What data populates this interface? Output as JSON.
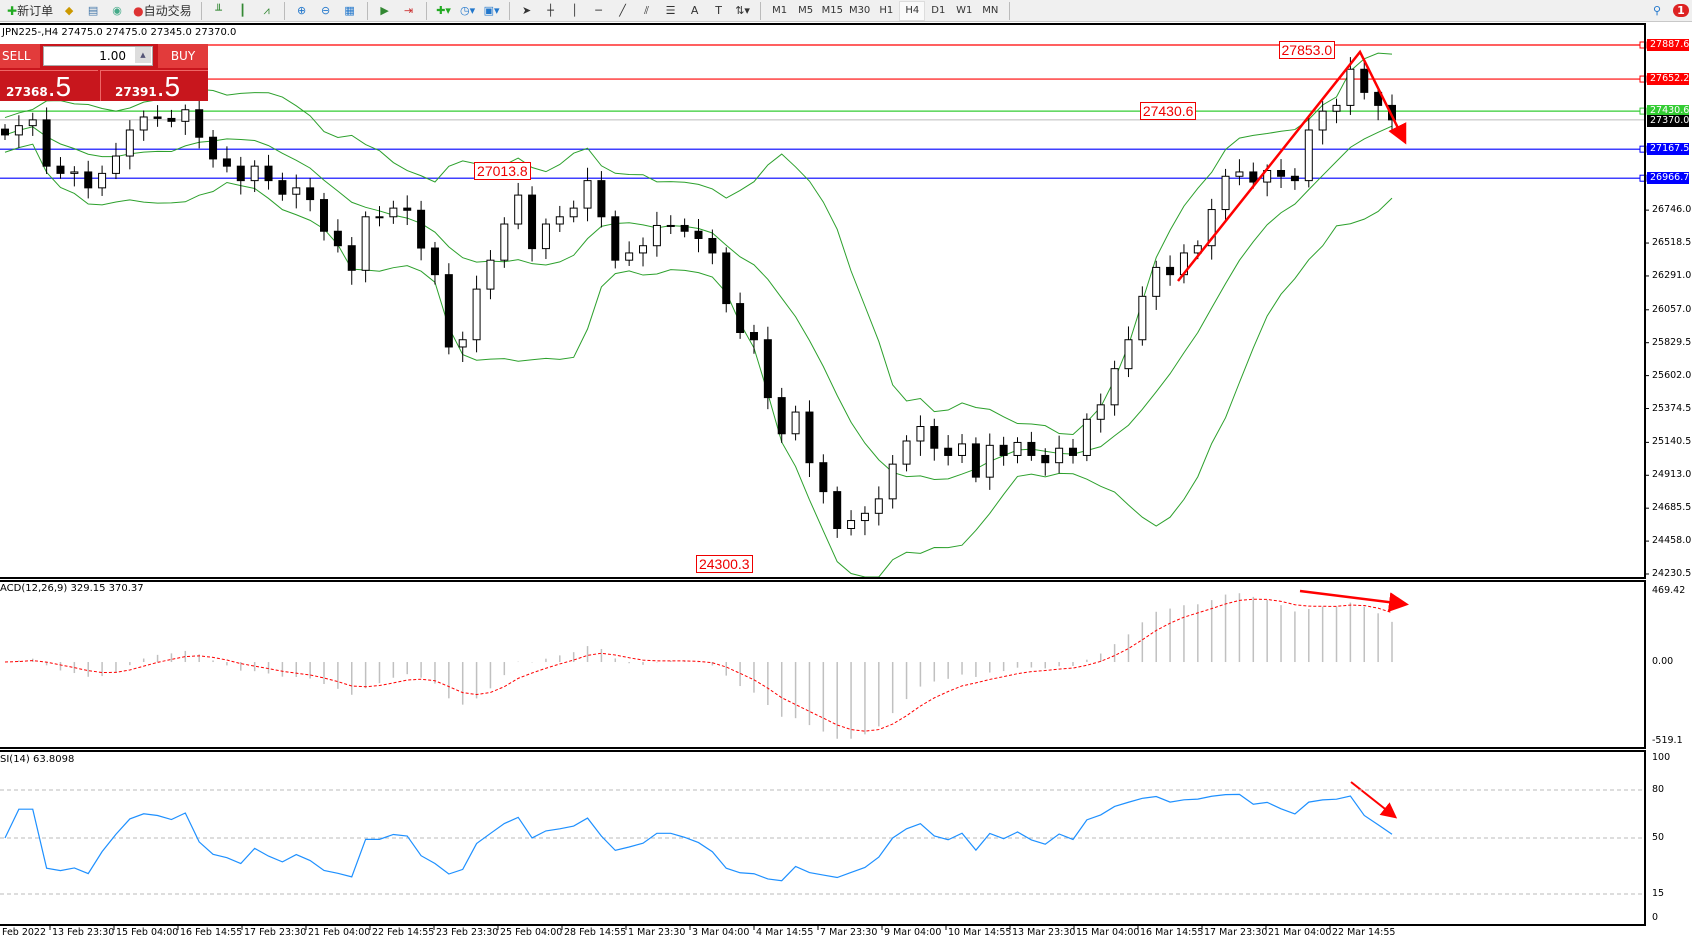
{
  "toolbar": {
    "new_order": "新订单",
    "auto_trading": "自动交易",
    "timeframes": [
      "M1",
      "M5",
      "M15",
      "M30",
      "H1",
      "H4",
      "D1",
      "W1",
      "MN"
    ],
    "active_timeframe": "H4",
    "notification_count": "1"
  },
  "chart": {
    "symbol_info": "JPN225-,H4  27475.0 27475.0 27345.0 27370.0",
    "trade_panel": {
      "sell": "SELL",
      "buy": "BUY",
      "lot": "1.00",
      "sell_price_main": "27368",
      "sell_price_big": ".5",
      "buy_price_main": "27391",
      "buy_price_big": ".5"
    },
    "price_ticks": [
      "26746.0",
      "26518.5",
      "26291.0",
      "26057.0",
      "25829.5",
      "25602.0",
      "25374.5",
      "25140.5",
      "24913.0",
      "24685.5",
      "24458.0",
      "24230.5"
    ],
    "levels": [
      {
        "value": "27887.6",
        "color": "#ff0000"
      },
      {
        "value": "27652.2",
        "color": "#ff0000"
      },
      {
        "value": "27430.6",
        "color": "#33cc33"
      },
      {
        "value": "27167.5",
        "color": "#0000ff"
      },
      {
        "value": "26966.7",
        "color": "#0000ff"
      }
    ],
    "current_price": "27370.0",
    "price_labels": [
      {
        "text": "27853.0",
        "value": 27853.0,
        "bar": 96
      },
      {
        "text": "27430.6",
        "value": 27430.6,
        "bar": 86
      },
      {
        "text": "27013.8",
        "value": 27013.8,
        "bar": 38
      },
      {
        "text": "24300.3",
        "value": 24300.3,
        "bar": 54
      }
    ],
    "time_labels": [
      "Feb 2022",
      "13 Feb 23:30",
      "15 Feb 04:00",
      "16 Feb 14:55",
      "17 Feb 23:30",
      "21 Feb 04:00",
      "22 Feb 14:55",
      "23 Feb 23:30",
      "25 Feb 04:00",
      "28 Feb 14:55",
      "1 Mar 23:30",
      "3 Mar 04:00",
      "4 Mar 14:55",
      "7 Mar 23:30",
      "9 Mar 04:00",
      "10 Mar 14:55",
      "13 Mar 23:30",
      "15 Mar 04:00",
      "16 Mar 14:55",
      "17 Mar 23:30",
      "21 Mar 04:00",
      "22 Mar 14:55"
    ],
    "colors": {
      "bollinger": "#2ca02c",
      "arrow": "#ff0000",
      "macd_signal": "#ff0000",
      "macd_hist": "#c0c0c0",
      "rsi": "#1e90ff"
    }
  },
  "macd": {
    "label": "ACD(12,26,9) 329.15 370.37",
    "max": "469.42",
    "zero": "0.00",
    "min": "-519.1"
  },
  "rsi": {
    "label": "SI(14) 63.8098",
    "levels": [
      "100",
      "80",
      "50",
      "15",
      "0"
    ]
  },
  "chart_data": {
    "type": "candlestick",
    "ylim": [
      24230.5,
      27887.6
    ],
    "closes": [
      27266,
      27330,
      27370,
      27050,
      27000,
      27010,
      26900,
      27000,
      27120,
      27300,
      27390,
      27380,
      27360,
      27440,
      27250,
      27100,
      27050,
      26950,
      27050,
      26950,
      26856,
      26900,
      26819,
      26600,
      26500,
      26330,
      26700,
      26700,
      26760,
      26745,
      26484,
      26300,
      25800,
      25850,
      26200,
      26400,
      26650,
      26850,
      26480,
      26650,
      26700,
      26760,
      26950,
      26700,
      26400,
      26450,
      26500,
      26640,
      26640,
      26600,
      26550,
      26450,
      26100,
      25900,
      25850,
      25450,
      25200,
      25350,
      25000,
      24800,
      24545,
      24600,
      24650,
      24750,
      24990,
      25150,
      25250,
      25100,
      25050,
      25130,
      24900,
      25120,
      25050,
      25140,
      25050,
      25000,
      25100,
      25050,
      25300,
      25400,
      25650,
      25850,
      26150,
      26350,
      26300,
      26450,
      26500,
      26750,
      26980,
      27010,
      26940,
      27020,
      26980,
      26950,
      27300,
      27430,
      27470,
      27720,
      27560,
      27470,
      27370
    ]
  }
}
